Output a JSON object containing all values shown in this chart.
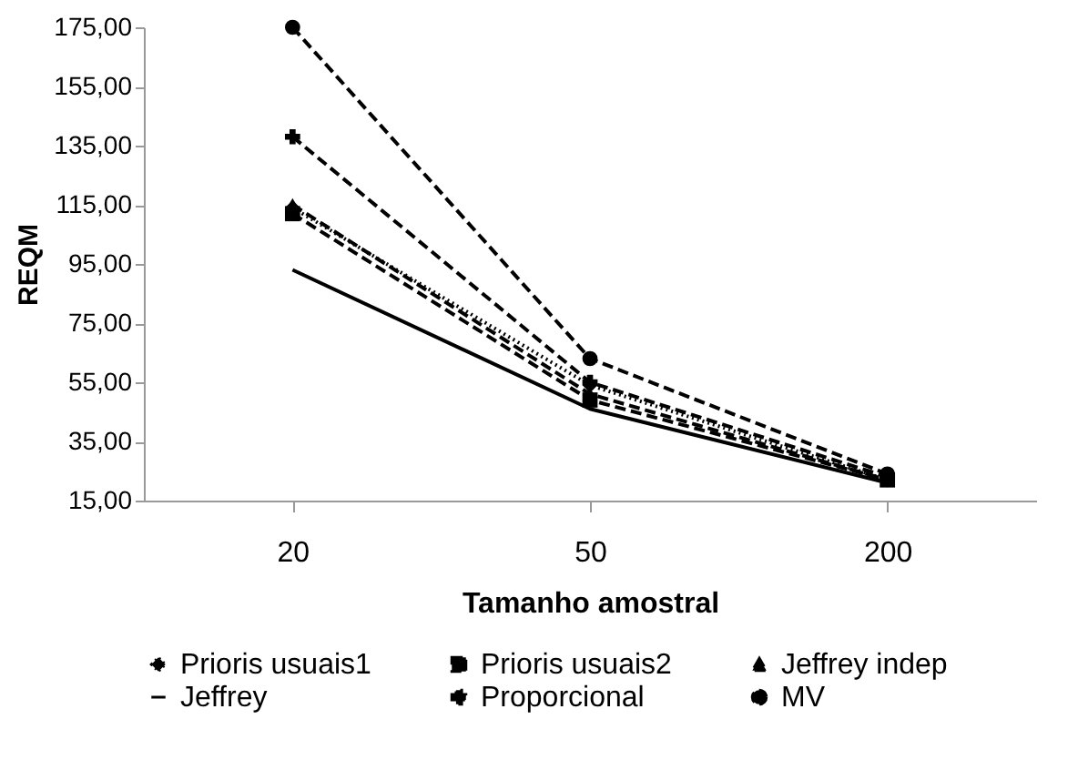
{
  "chart_data": {
    "type": "line",
    "xlabel": "Tamanho amostral",
    "ylabel": "REQM",
    "categories": [
      "20",
      "50",
      "200"
    ],
    "ylim": [
      15,
      175
    ],
    "yticks": [
      {
        "value": 15,
        "label": "15,00"
      },
      {
        "value": 35,
        "label": "35,00"
      },
      {
        "value": 55,
        "label": "55,00"
      },
      {
        "value": 75,
        "label": "75,00"
      },
      {
        "value": 95,
        "label": "95,00"
      },
      {
        "value": 115,
        "label": "115,00"
      },
      {
        "value": 135,
        "label": "135,00"
      },
      {
        "value": 155,
        "label": "155,00"
      },
      {
        "value": 175,
        "label": "175,00"
      }
    ],
    "grid": false,
    "legend": "bottom",
    "series": [
      {
        "name": "Prioris usuais1",
        "color": "#000000",
        "marker": "diamond",
        "line_style": "dotted",
        "values": [
          114,
          54,
          22
        ]
      },
      {
        "name": "Prioris usuais2",
        "color": "#000000",
        "marker": "square",
        "line_style": "dashed",
        "values": [
          112,
          49,
          22
        ]
      },
      {
        "name": "Jeffrey indep",
        "color": "#000000",
        "marker": "triangle",
        "line_style": "dashed",
        "values": [
          115,
          51,
          22
        ]
      },
      {
        "name": "Jeffrey",
        "color": "#000000",
        "marker": "none",
        "line_style": "solid",
        "values": [
          93,
          46,
          21
        ]
      },
      {
        "name": "Proporcional",
        "color": "#000000",
        "marker": "cross",
        "line_style": "dashed",
        "values": [
          138,
          55,
          23
        ]
      },
      {
        "name": "MV",
        "color": "#000000",
        "marker": "circle",
        "line_style": "dashed",
        "values": [
          175,
          63,
          24
        ]
      }
    ]
  }
}
